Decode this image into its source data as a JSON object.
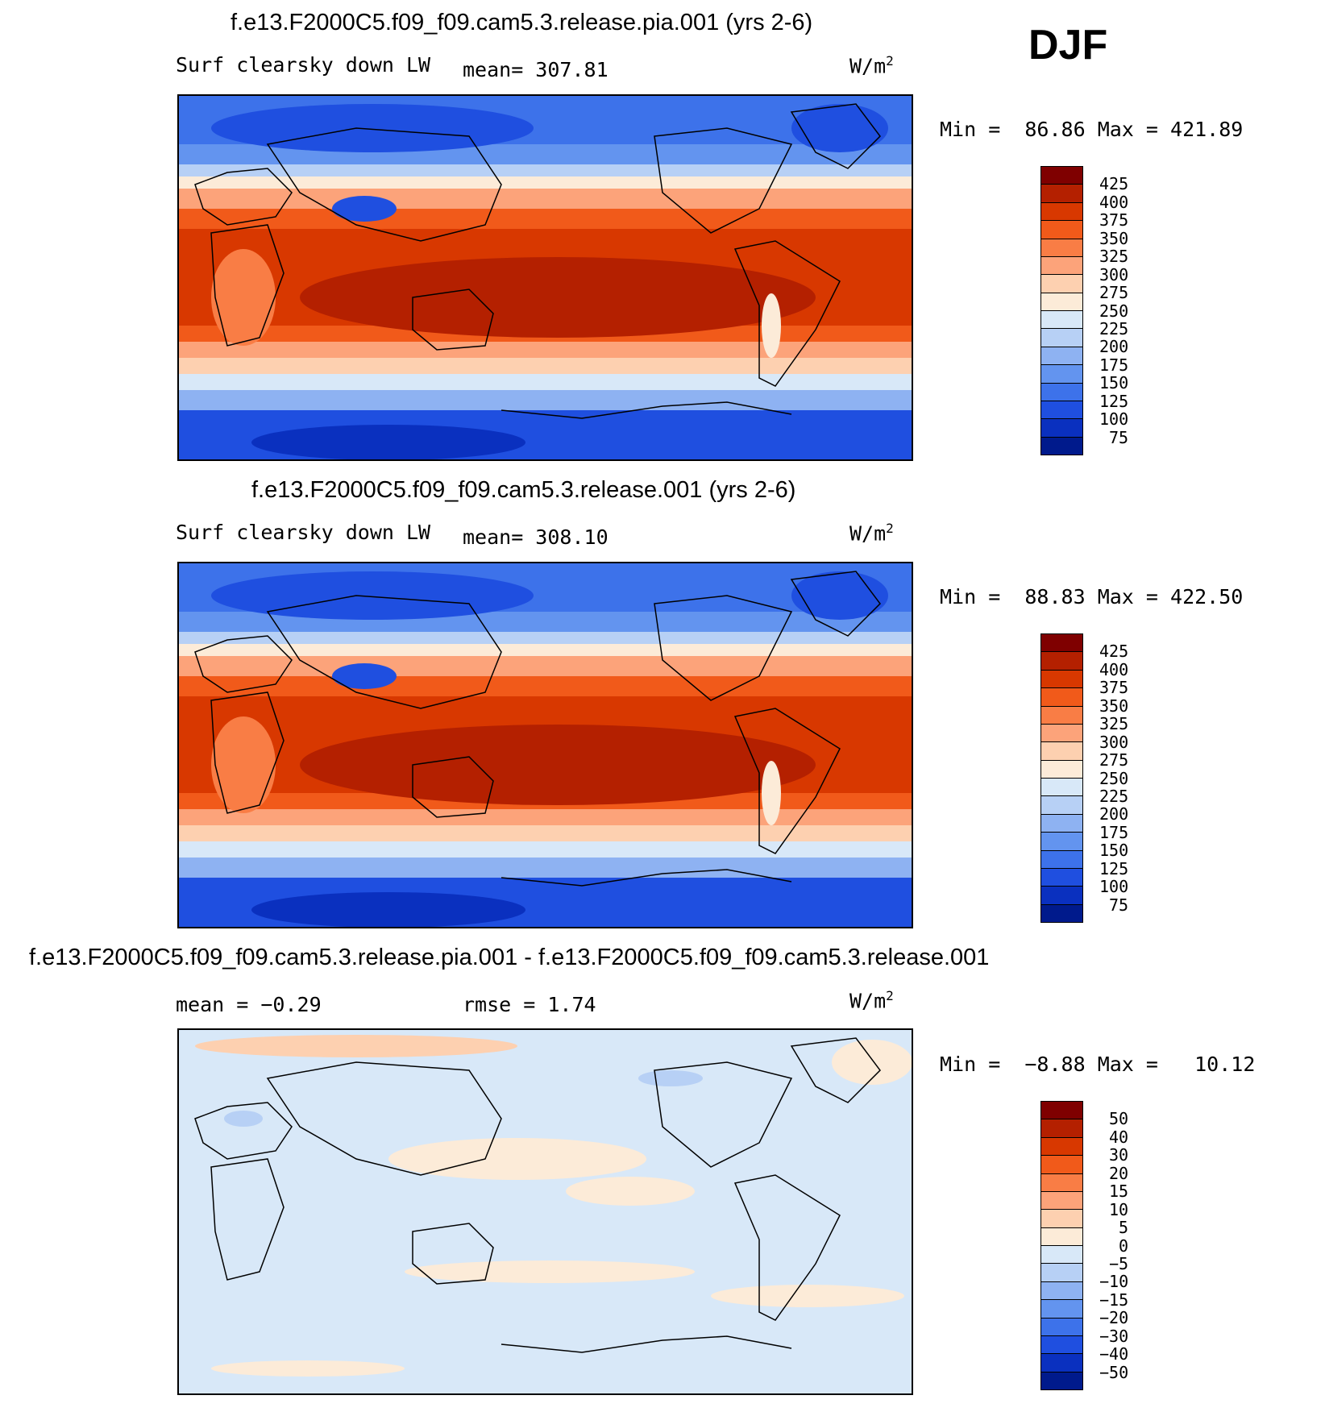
{
  "season": "DJF",
  "units_text": "W/m",
  "units_sup": "2",
  "panels": [
    {
      "title": "f.e13.F2000C5.f09_f09.cam5.3.release.pia.001 (yrs 2-6)",
      "left_label": "Surf clearsky down LW",
      "stat_text": "mean= 307.81",
      "stat2_text": "",
      "minmax": {
        "min_label": "Min =",
        "min": "86.86",
        "max_label": "Max =",
        "max": "421.89"
      }
    },
    {
      "title": "f.e13.F2000C5.f09_f09.cam5.3.release.001 (yrs 2-6)",
      "left_label": "Surf clearsky down LW",
      "stat_text": "mean= 308.10",
      "stat2_text": "",
      "minmax": {
        "min_label": "Min =",
        "min": "88.83",
        "max_label": "Max =",
        "max": "422.50"
      }
    },
    {
      "title": "f.e13.F2000C5.f09_f09.cam5.3.release.pia.001 - f.e13.F2000C5.f09_f09.cam5.3.release.001",
      "left_label": "mean =  −0.29",
      "stat_text": "rmse =   1.74",
      "stat2_text": "",
      "minmax": {
        "min_label": "Min =",
        "min": "−8.88",
        "max_label": "Max =",
        "max": "10.12"
      }
    }
  ],
  "chart_data": [
    {
      "type": "heatmap",
      "title": "f.e13.F2000C5.f09_f09.cam5.3.release.pia.001 (yrs 2-6)",
      "variable": "Surf clearsky down LW",
      "units": "W/m2",
      "season": "DJF",
      "mean": 307.81,
      "min": 86.86,
      "max": 421.89,
      "colorbar_levels": [
        425,
        400,
        375,
        350,
        325,
        300,
        275,
        250,
        225,
        200,
        175,
        150,
        125,
        100,
        75
      ],
      "colorbar_colors": [
        "#7f0000",
        "#b42000",
        "#d83800",
        "#f15a1a",
        "#f97d45",
        "#fca37a",
        "#fdd0b0",
        "#fcebd8",
        "#d8e8f8",
        "#b7d0f5",
        "#8eb2f2",
        "#6394ef",
        "#3d72ea",
        "#1f4fe0",
        "#0a30bf",
        "#001a8c"
      ]
    },
    {
      "type": "heatmap",
      "title": "f.e13.F2000C5.f09_f09.cam5.3.release.001 (yrs 2-6)",
      "variable": "Surf clearsky down LW",
      "units": "W/m2",
      "season": "DJF",
      "mean": 308.1,
      "min": 88.83,
      "max": 422.5,
      "colorbar_levels": [
        425,
        400,
        375,
        350,
        325,
        300,
        275,
        250,
        225,
        200,
        175,
        150,
        125,
        100,
        75
      ],
      "colorbar_colors": [
        "#7f0000",
        "#b42000",
        "#d83800",
        "#f15a1a",
        "#f97d45",
        "#fca37a",
        "#fdd0b0",
        "#fcebd8",
        "#d8e8f8",
        "#b7d0f5",
        "#8eb2f2",
        "#6394ef",
        "#3d72ea",
        "#1f4fe0",
        "#0a30bf",
        "#001a8c"
      ]
    },
    {
      "type": "heatmap",
      "title": "f.e13.F2000C5.f09_f09.cam5.3.release.pia.001 - f.e13.F2000C5.f09_f09.cam5.3.release.001",
      "units": "W/m2",
      "season": "DJF",
      "mean": -0.29,
      "rmse": 1.74,
      "min": -8.88,
      "max": 10.12,
      "colorbar_levels": [
        50,
        40,
        30,
        20,
        15,
        10,
        5,
        0,
        -5,
        -10,
        -15,
        -20,
        -30,
        -40,
        -50
      ],
      "colorbar_colors": [
        "#7f0000",
        "#b42000",
        "#d83800",
        "#f15a1a",
        "#f97d45",
        "#fca37a",
        "#fdd0b0",
        "#fcebd8",
        "#d8e8f8",
        "#b7d0f5",
        "#8eb2f2",
        "#6394ef",
        "#3d72ea",
        "#1f4fe0",
        "#0a30bf",
        "#001a8c"
      ]
    }
  ],
  "colorbar_labels": [
    [
      "425",
      "400",
      "375",
      "350",
      "325",
      "300",
      "275",
      "250",
      "225",
      "200",
      "175",
      "150",
      "125",
      "100",
      "75"
    ],
    [
      "425",
      "400",
      "375",
      "350",
      "325",
      "300",
      "275",
      "250",
      "225",
      "200",
      "175",
      "150",
      "125",
      "100",
      "75"
    ],
    [
      "50",
      "40",
      "30",
      "20",
      "15",
      "10",
      "5",
      "0",
      "−5",
      "−10",
      "−15",
      "−20",
      "−30",
      "−40",
      "−50"
    ]
  ]
}
